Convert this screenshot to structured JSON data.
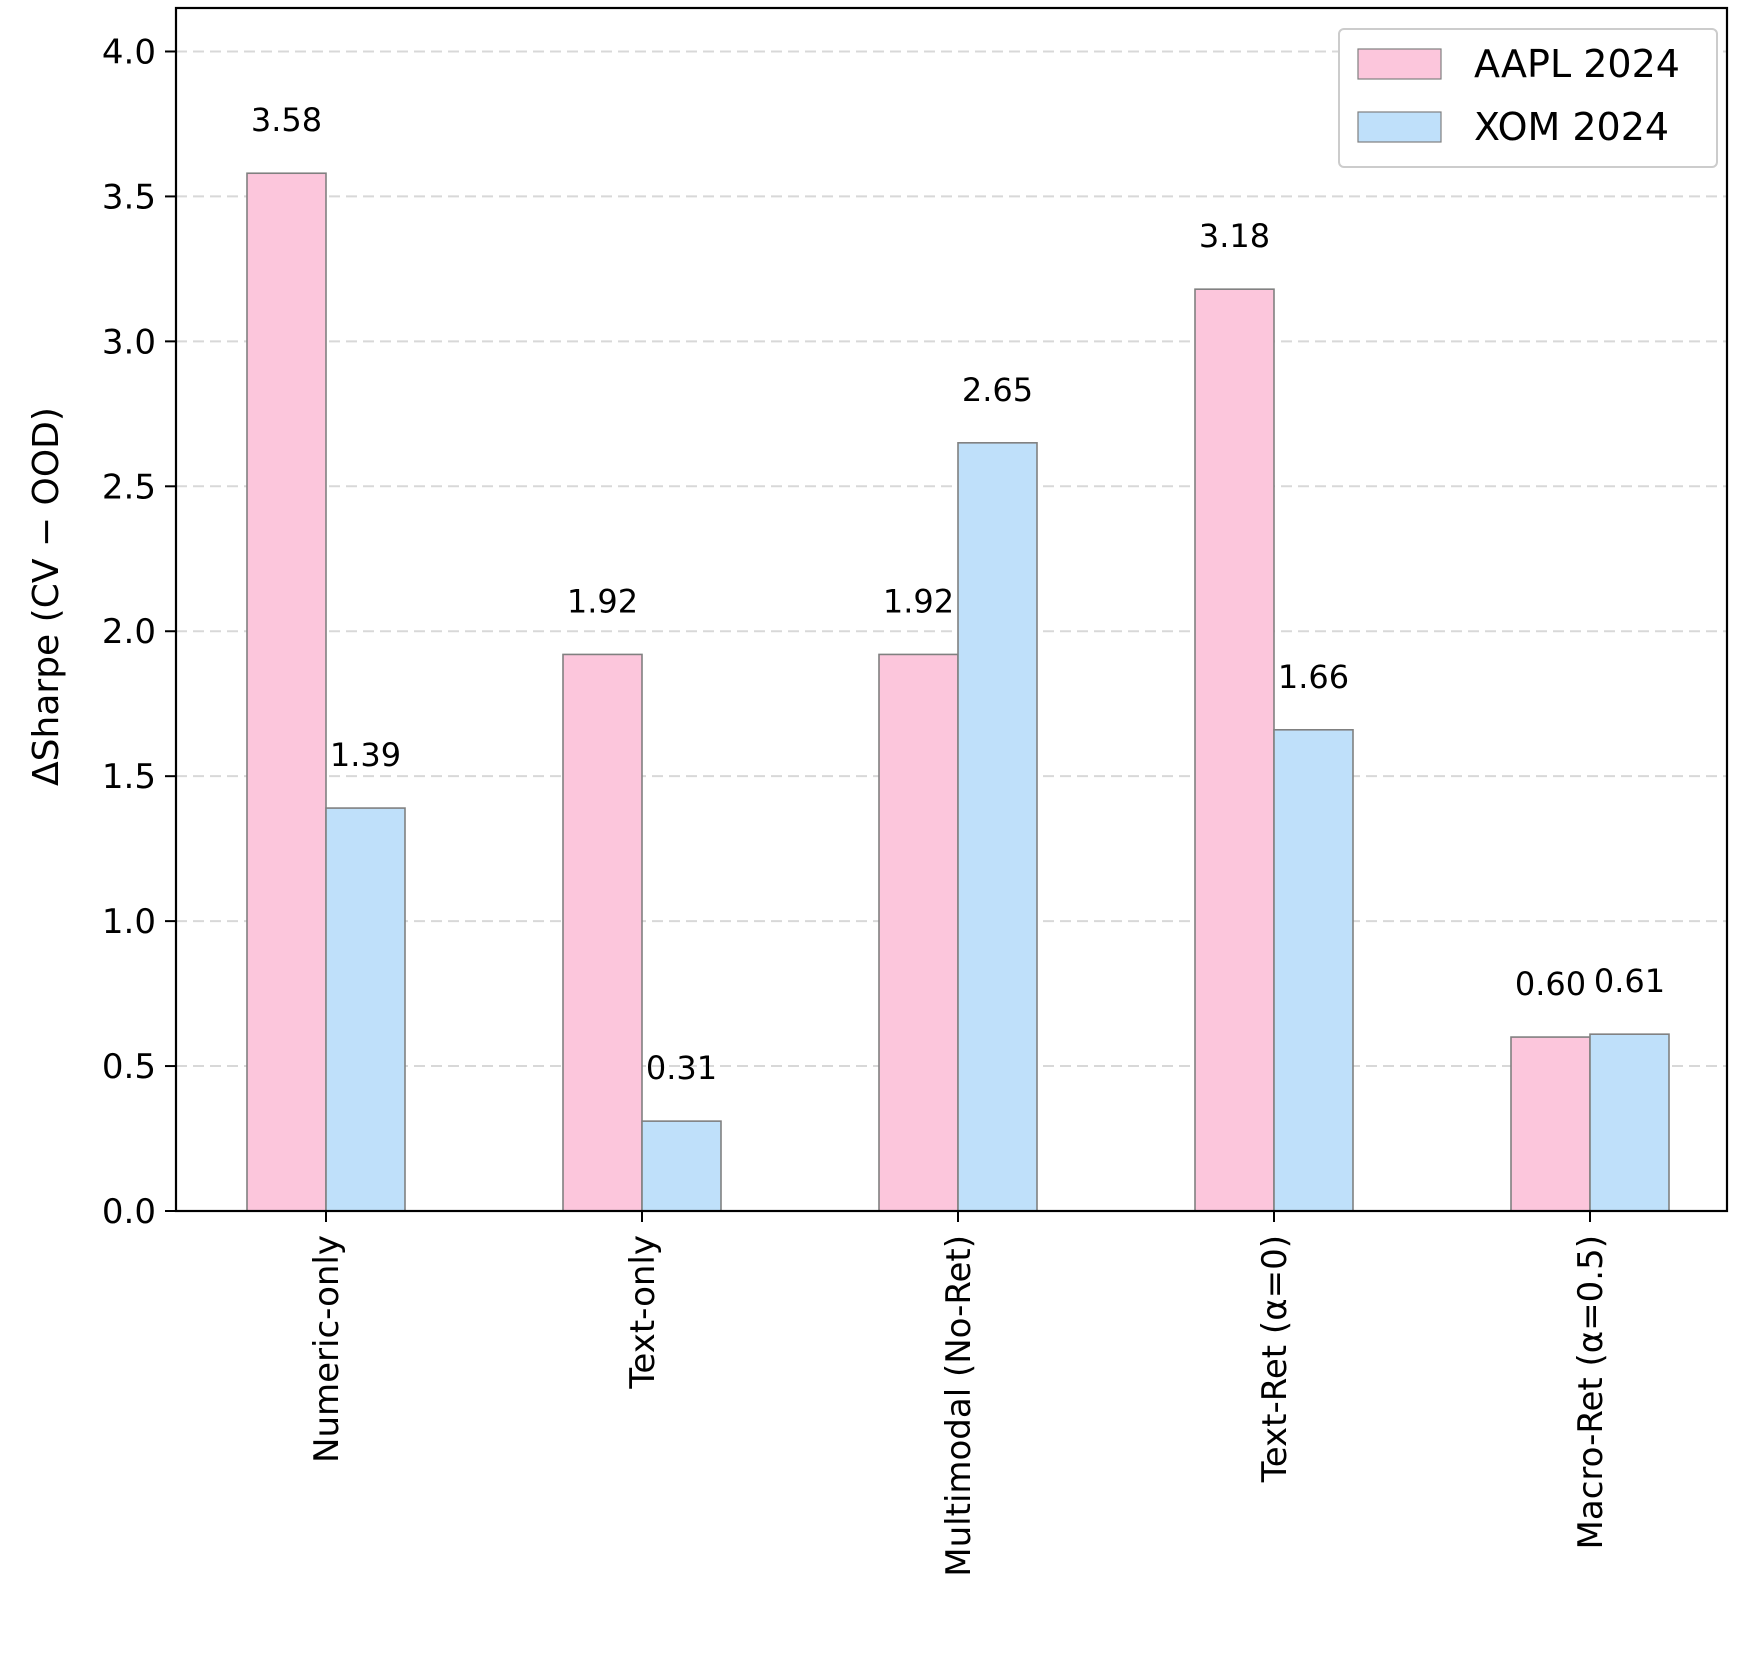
{
  "chart_data": {
    "type": "bar",
    "title": "",
    "xlabel": "",
    "ylabel": "ΔSharpe (CV − OOD)",
    "categories": [
      "Numeric-only",
      "Text-only",
      "Multimodal (No-Ret)",
      "Text-Ret (α=0)",
      "Macro-Ret (α=0.5)"
    ],
    "series": [
      {
        "name": "AAPL 2024",
        "color": "#fcc6dc",
        "values": [
          3.58,
          1.92,
          1.92,
          3.18,
          0.6
        ],
        "labels": [
          "3.58",
          "1.92",
          "1.92",
          "3.18",
          "0.60"
        ]
      },
      {
        "name": "XOM 2024",
        "color": "#bfe0fa",
        "values": [
          1.39,
          0.31,
          2.65,
          1.66,
          0.61
        ],
        "labels": [
          "1.39",
          "0.31",
          "2.65",
          "1.66",
          "0.61"
        ]
      }
    ],
    "ylim": [
      0,
      4.15
    ],
    "yticks": [
      0.0,
      0.5,
      1.0,
      1.5,
      2.0,
      2.5,
      3.0,
      3.5,
      4.0
    ],
    "ytick_labels": [
      "0.0",
      "0.5",
      "1.0",
      "1.5",
      "2.0",
      "2.5",
      "3.0",
      "3.5",
      "4.0"
    ],
    "grid": "y-dashed",
    "legend": "top-right",
    "bar_edge_color": "#808080"
  }
}
